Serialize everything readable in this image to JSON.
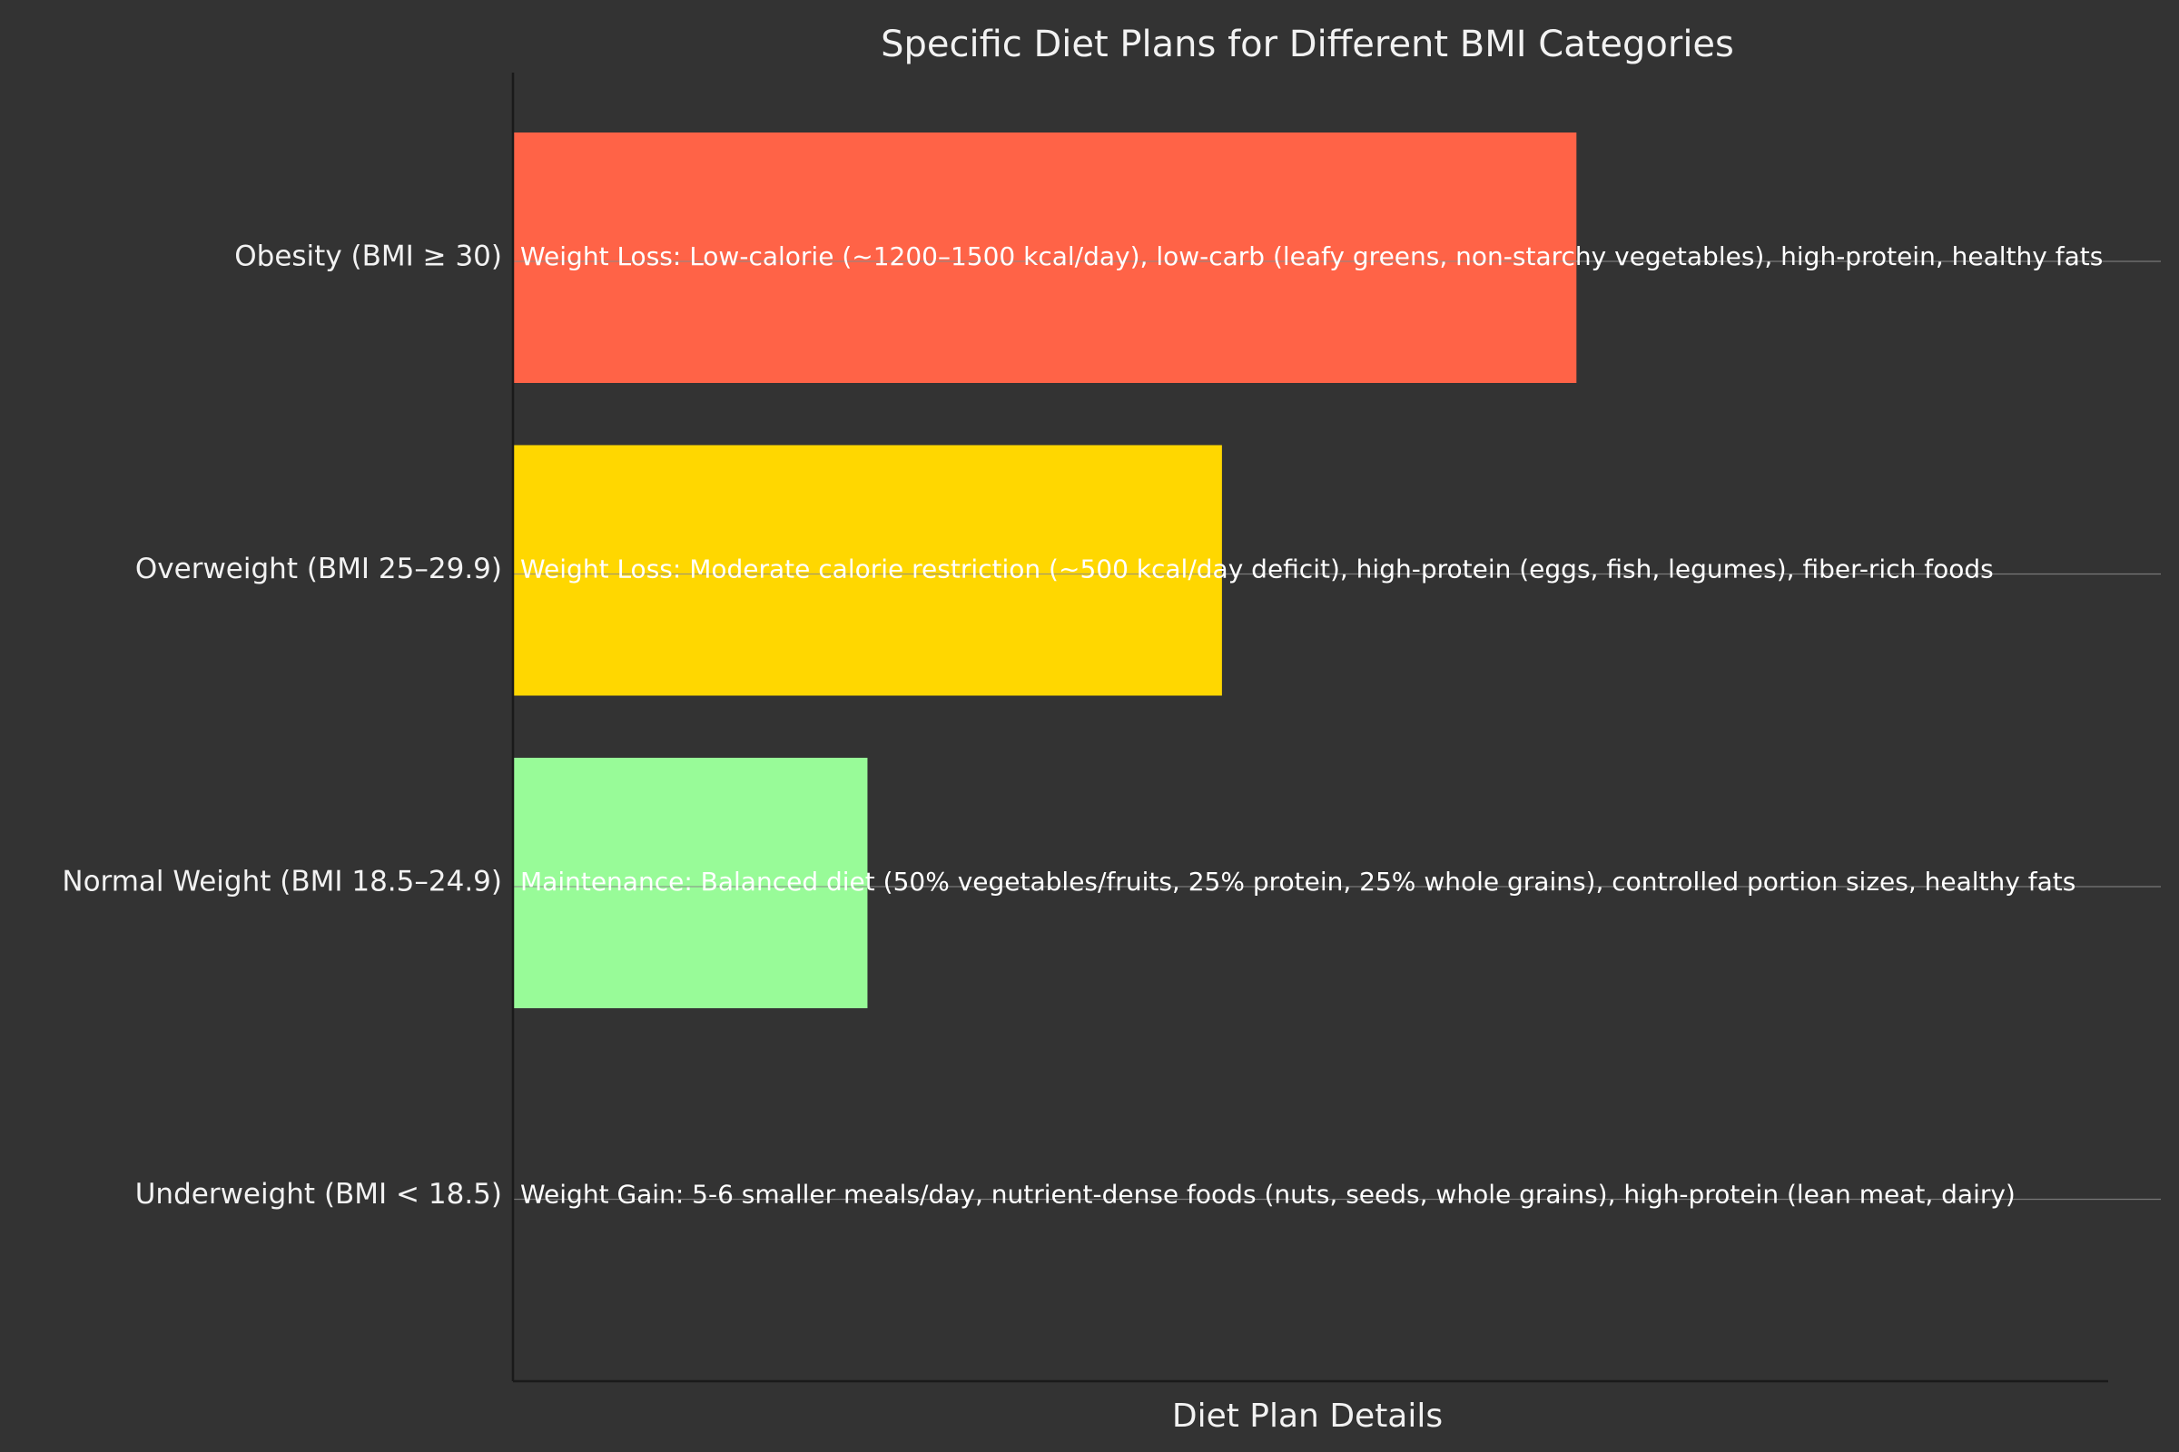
{
  "chart_data": {
    "type": "bar",
    "orientation": "horizontal",
    "title": "Specific Diet Plans for Different BMI Categories",
    "xlabel": "Diet Plan Details",
    "ylabel": "",
    "xlim": [
      0,
      4.5
    ],
    "grid": false,
    "legend": "none",
    "categories": [
      "Underweight (BMI < 18.5)",
      "Normal Weight (BMI 18.5–24.9)",
      "Overweight (BMI 25–29.9)",
      "Obesity (BMI ≥ 30)"
    ],
    "values": [
      0,
      1,
      2,
      3
    ],
    "colors": [
      "#87CEEB",
      "#98FB98",
      "#FFD700",
      "#FF6347"
    ],
    "annotations": [
      "Weight Gain: 5-6 smaller meals/day, nutrient-dense foods (nuts, seeds, whole grains), high-protein (lean meat, dairy)",
      "Maintenance: Balanced diet (50% vegetables/fruits, 25% protein, 25% whole grains), controlled portion sizes, healthy fats",
      "Weight Loss: Moderate calorie restriction (~500 kcal/day deficit), high-protein (eggs, fish, legumes), fiber-rich foods",
      "Weight Loss: Low-calorie (~1200–1500 kcal/day), low-carb (leafy greens, non-starchy vegetables), high-protein, healthy fats"
    ]
  },
  "colors": {
    "background": "#333333",
    "text": "#f2f2f2",
    "axis": "#1a1a1a"
  }
}
